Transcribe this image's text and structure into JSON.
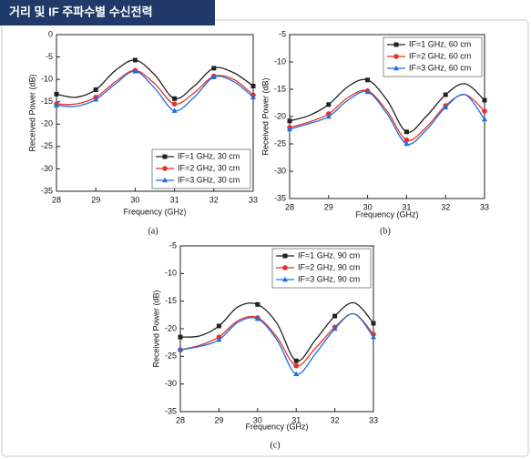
{
  "header": {
    "title": "거리 및 IF 주파수별 수신전력"
  },
  "chart_data": [
    {
      "type": "line",
      "caption": "(a)",
      "xlabel": "Frequency (GHz)",
      "ylabel": "Received Power (dB)",
      "x": [
        28,
        28.5,
        29,
        29.5,
        30,
        30.5,
        31,
        31.5,
        32,
        32.5,
        33
      ],
      "xlim": [
        28,
        33
      ],
      "xticks": [
        28,
        29,
        30,
        31,
        32,
        33
      ],
      "ylim": [
        -35,
        0
      ],
      "yticks": [
        0,
        -5,
        -10,
        -15,
        -20,
        -25,
        -30,
        -35
      ],
      "legend": "lower right",
      "series": [
        {
          "name": "IF=1 GHz, 30 cm",
          "color": "#222222",
          "marker": "square",
          "values": [
            -13.3,
            -14,
            -12.3,
            -8,
            -5.7,
            -9,
            -14.3,
            -11.5,
            -7.5,
            -8.5,
            -11.5
          ]
        },
        {
          "name": "IF=2 GHz, 30 cm",
          "color": "#e8302a",
          "marker": "circle",
          "values": [
            -15.5,
            -15.5,
            -14,
            -10.5,
            -8,
            -11,
            -15.5,
            -13,
            -9.3,
            -10,
            -13.5
          ]
        },
        {
          "name": "IF=3 GHz, 30 cm",
          "color": "#1e6fe0",
          "marker": "triangle",
          "values": [
            -15.8,
            -16,
            -14.5,
            -11,
            -8.2,
            -12,
            -17,
            -14,
            -9.5,
            -10.5,
            -14
          ]
        }
      ]
    },
    {
      "type": "line",
      "caption": "(b)",
      "xlabel": "Frequency (GHz)",
      "ylabel": "Received Power (dB)",
      "x": [
        28,
        28.5,
        29,
        29.5,
        30,
        30.5,
        31,
        31.5,
        32,
        32.5,
        33
      ],
      "xlim": [
        28,
        33
      ],
      "xticks": [
        28,
        29,
        30,
        31,
        32,
        33
      ],
      "ylim": [
        -35,
        -5
      ],
      "yticks": [
        -5,
        -10,
        -15,
        -20,
        -25,
        -30,
        -35
      ],
      "legend": "upper right",
      "series": [
        {
          "name": "IF=1 GHz, 60 cm",
          "color": "#222222",
          "marker": "square",
          "values": [
            -20.8,
            -19.8,
            -17.8,
            -14.5,
            -13.3,
            -17,
            -22.8,
            -20,
            -16,
            -14,
            -17
          ]
        },
        {
          "name": "IF=2 GHz, 60 cm",
          "color": "#e8302a",
          "marker": "circle",
          "values": [
            -22,
            -21,
            -19.5,
            -16.5,
            -15.3,
            -19,
            -24.3,
            -22,
            -18,
            -16,
            -19
          ]
        },
        {
          "name": "IF=3 GHz, 60 cm",
          "color": "#1e6fe0",
          "marker": "triangle",
          "values": [
            -22.3,
            -21.3,
            -20,
            -17,
            -15.5,
            -19.5,
            -25,
            -22.5,
            -18.3,
            -16,
            -20.5
          ]
        }
      ]
    },
    {
      "type": "line",
      "caption": "(c)",
      "xlabel": "Frequency (GHz)",
      "ylabel": "Received Power (dB)",
      "x": [
        28,
        28.5,
        29,
        29.5,
        30,
        30.5,
        31,
        31.5,
        32,
        32.5,
        33
      ],
      "xlim": [
        28,
        33
      ],
      "xticks": [
        28,
        29,
        30,
        31,
        32,
        33
      ],
      "ylim": [
        -35,
        -5
      ],
      "yticks": [
        -5,
        -10,
        -15,
        -20,
        -25,
        -30,
        -35
      ],
      "legend": "upper right",
      "series": [
        {
          "name": "IF=1 GHz, 90 cm",
          "color": "#222222",
          "marker": "square",
          "values": [
            -21.5,
            -21.3,
            -19.5,
            -16,
            -15.6,
            -19,
            -25.8,
            -22,
            -17.7,
            -15.3,
            -19
          ]
        },
        {
          "name": "IF=2 GHz, 90 cm",
          "color": "#e8302a",
          "marker": "circle",
          "values": [
            -23.8,
            -23,
            -21.5,
            -18.5,
            -18,
            -21.5,
            -26.7,
            -23.5,
            -19.7,
            -17.3,
            -21
          ]
        },
        {
          "name": "IF=3 GHz, 90 cm",
          "color": "#1e6fe0",
          "marker": "triangle",
          "values": [
            -23.8,
            -23.2,
            -22,
            -18.8,
            -18.2,
            -22,
            -28.2,
            -24.5,
            -20,
            -17.3,
            -21.5
          ]
        }
      ]
    }
  ]
}
